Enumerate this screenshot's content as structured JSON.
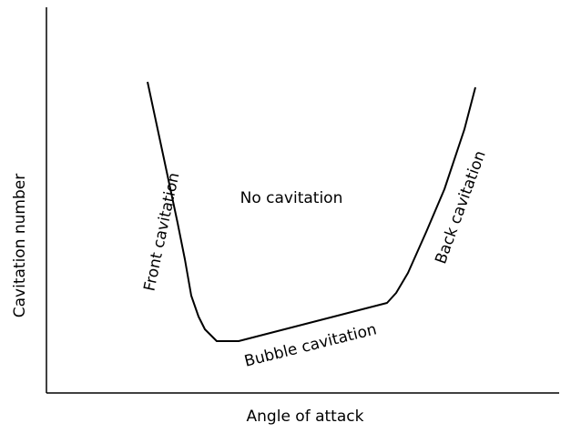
{
  "axes": {
    "y_label": "Cavitation number",
    "x_label": "Angle of attack"
  },
  "regions": {
    "none": "No cavitation",
    "front": "Front cavitation",
    "bubble": "Bubble cavitation",
    "back": "Back cavitation"
  }
}
